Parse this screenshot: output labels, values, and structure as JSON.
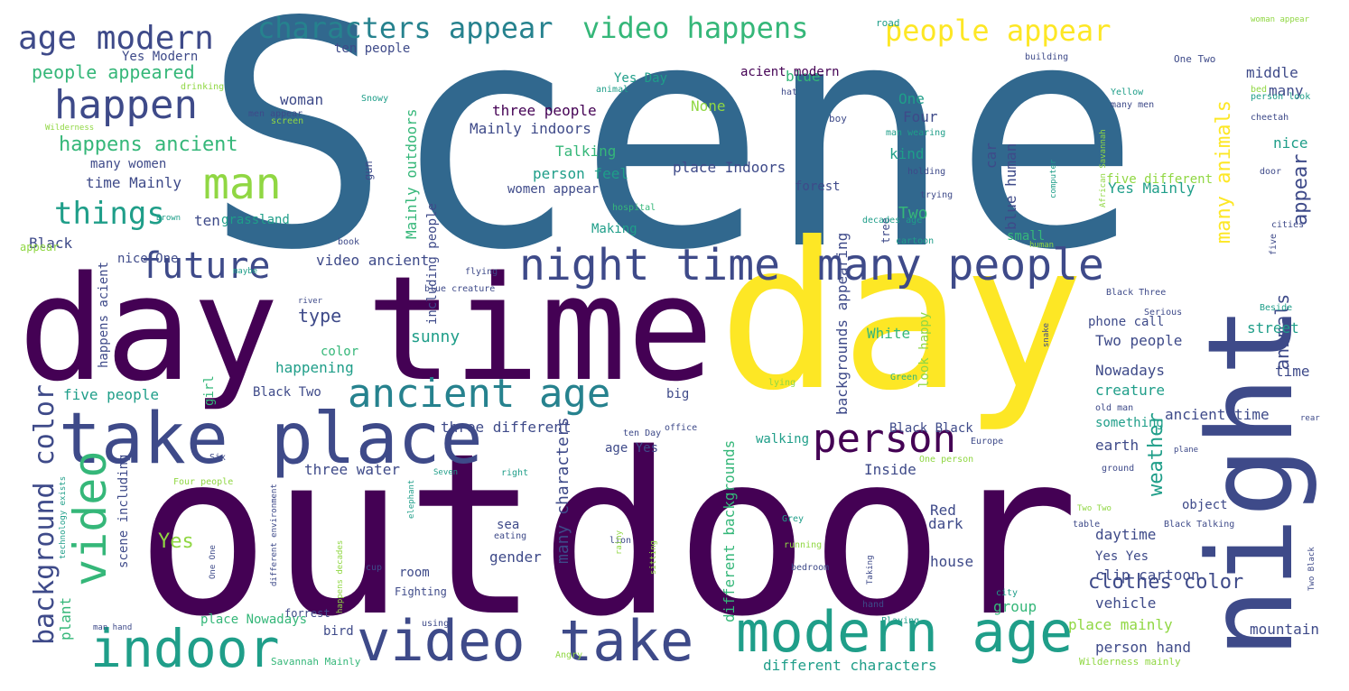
{
  "colors": {
    "purple": "#440154",
    "indigo": "#3e4a89",
    "blue": "#31688e",
    "teal": "#26828e",
    "green": "#1f9e89",
    "lime": "#35b779",
    "yellowgreen": "#90d743",
    "yellow": "#fde725"
  },
  "words": [
    {
      "text": "Scene",
      "color": "blue"
    },
    {
      "text": "outdoor",
      "color": "purple"
    },
    {
      "text": "day",
      "color": "yellow"
    },
    {
      "text": "day time",
      "color": "purple"
    },
    {
      "text": "night",
      "color": "indigo"
    },
    {
      "text": "take place",
      "color": "indigo"
    },
    {
      "text": "video take",
      "color": "indigo"
    },
    {
      "text": "modern age",
      "color": "green"
    },
    {
      "text": "indoor",
      "color": "green"
    },
    {
      "text": "night time",
      "color": "indigo"
    },
    {
      "text": "many people",
      "color": "indigo"
    },
    {
      "text": "ancient age",
      "color": "teal"
    },
    {
      "text": "person",
      "color": "purple"
    },
    {
      "text": "future",
      "color": "indigo"
    },
    {
      "text": "happen",
      "color": "indigo"
    },
    {
      "text": "age modern",
      "color": "indigo"
    },
    {
      "text": "man",
      "color": "yellowgreen"
    },
    {
      "text": "characters appear",
      "color": "teal"
    },
    {
      "text": "video happens",
      "color": "lime"
    },
    {
      "text": "people appear",
      "color": "yellow"
    },
    {
      "text": "things",
      "color": "green"
    },
    {
      "text": "video",
      "color": "lime"
    },
    {
      "text": "background color",
      "color": "indigo"
    },
    {
      "text": "many animals",
      "color": "yellow"
    },
    {
      "text": "appear",
      "color": "indigo"
    },
    {
      "text": "weather",
      "color": "green"
    },
    {
      "text": "animals",
      "color": "indigo"
    },
    {
      "text": "clothes color",
      "color": "indigo"
    },
    {
      "text": "happens ancient",
      "color": "lime"
    },
    {
      "text": "people appeared",
      "color": "lime"
    },
    {
      "text": "type",
      "color": "indigo"
    },
    {
      "text": "Mainly outdoors",
      "color": "lime"
    },
    {
      "text": "three people",
      "color": "purple"
    },
    {
      "text": "Mainly indoors",
      "color": "indigo"
    },
    {
      "text": "woman",
      "color": "indigo"
    },
    {
      "text": "person feel",
      "color": "green"
    },
    {
      "text": "place Indoors",
      "color": "indigo"
    },
    {
      "text": "Talking",
      "color": "lime"
    },
    {
      "text": "sunny",
      "color": "green"
    },
    {
      "text": "Two",
      "color": "lime"
    },
    {
      "text": "blue",
      "color": "lime"
    },
    {
      "text": "None",
      "color": "yellowgreen"
    },
    {
      "text": "One",
      "color": "green"
    },
    {
      "text": "Four",
      "color": "indigo"
    },
    {
      "text": "kind",
      "color": "green"
    },
    {
      "text": "car",
      "color": "indigo"
    },
    {
      "text": "many characters",
      "color": "indigo"
    },
    {
      "text": "different backgrounds",
      "color": "lime"
    },
    {
      "text": "backgrounds appearing",
      "color": "indigo"
    },
    {
      "text": "blue human",
      "color": "indigo"
    },
    {
      "text": "Yes Day",
      "color": "green"
    },
    {
      "text": "acient modern",
      "color": "purple"
    },
    {
      "text": "ten people",
      "color": "indigo"
    },
    {
      "text": "Yes Modern",
      "color": "indigo"
    },
    {
      "text": "time Mainly",
      "color": "indigo"
    },
    {
      "text": "many women",
      "color": "indigo"
    },
    {
      "text": "ten",
      "color": "indigo"
    },
    {
      "text": "Black",
      "color": "indigo"
    },
    {
      "text": "nice One",
      "color": "indigo"
    },
    {
      "text": "grassland",
      "color": "green"
    },
    {
      "text": "video ancient",
      "color": "indigo"
    },
    {
      "text": "Making",
      "color": "green"
    },
    {
      "text": "women appear",
      "color": "indigo"
    },
    {
      "text": "forest",
      "color": "indigo"
    },
    {
      "text": "including people",
      "color": "indigo"
    },
    {
      "text": "color",
      "color": "lime"
    },
    {
      "text": "happening",
      "color": "green"
    },
    {
      "text": "Black Two",
      "color": "indigo"
    },
    {
      "text": "five people",
      "color": "green"
    },
    {
      "text": "three different",
      "color": "indigo"
    },
    {
      "text": "walking",
      "color": "green"
    },
    {
      "text": "age Yes",
      "color": "indigo"
    },
    {
      "text": "three water",
      "color": "indigo"
    },
    {
      "text": "Inside",
      "color": "indigo"
    },
    {
      "text": "White",
      "color": "lime"
    },
    {
      "text": "look happy",
      "color": "yellowgreen"
    },
    {
      "text": "phone call",
      "color": "indigo"
    },
    {
      "text": "Two people",
      "color": "indigo"
    },
    {
      "text": "Nowadays",
      "color": "indigo"
    },
    {
      "text": "creature",
      "color": "green"
    },
    {
      "text": "something",
      "color": "green"
    },
    {
      "text": "ancient time",
      "color": "indigo"
    },
    {
      "text": "earth",
      "color": "indigo"
    },
    {
      "text": "Black Black",
      "color": "indigo"
    },
    {
      "text": "street",
      "color": "green"
    },
    {
      "text": "time",
      "color": "indigo"
    },
    {
      "text": "small",
      "color": "lime"
    },
    {
      "text": "middle",
      "color": "indigo"
    },
    {
      "text": "many",
      "color": "indigo"
    },
    {
      "text": "nice",
      "color": "green"
    },
    {
      "text": "five different",
      "color": "yellowgreen"
    },
    {
      "text": "Yes Mainly",
      "color": "green"
    },
    {
      "text": "Yes",
      "color": "yellowgreen"
    },
    {
      "text": "sea",
      "color": "indigo"
    },
    {
      "text": "gender",
      "color": "indigo"
    },
    {
      "text": "room",
      "color": "indigo"
    },
    {
      "text": "Red",
      "color": "indigo"
    },
    {
      "text": "dark",
      "color": "indigo"
    },
    {
      "text": "house",
      "color": "indigo"
    },
    {
      "text": "daytime",
      "color": "indigo"
    },
    {
      "text": "Yes Yes",
      "color": "indigo"
    },
    {
      "text": "clip cartoon",
      "color": "indigo"
    },
    {
      "text": "object",
      "color": "indigo"
    },
    {
      "text": "group",
      "color": "lime"
    },
    {
      "text": "vehicle",
      "color": "indigo"
    },
    {
      "text": "place mainly",
      "color": "yellowgreen"
    },
    {
      "text": "person hand",
      "color": "indigo"
    },
    {
      "text": "mountain",
      "color": "indigo"
    },
    {
      "text": "different characters",
      "color": "green"
    },
    {
      "text": "place Nowadays",
      "color": "lime"
    },
    {
      "text": "scene including",
      "color": "indigo"
    },
    {
      "text": "plant",
      "color": "lime"
    },
    {
      "text": "bird",
      "color": "indigo"
    },
    {
      "text": "big",
      "color": "indigo"
    },
    {
      "text": "girl",
      "color": "lime"
    },
    {
      "text": "happens acient",
      "color": "indigo"
    },
    {
      "text": "appear",
      "color": "yellowgreen"
    },
    {
      "text": "gun",
      "color": "indigo"
    },
    {
      "text": "tree",
      "color": "indigo"
    },
    {
      "text": "Fighting",
      "color": "indigo"
    },
    {
      "text": "forrest",
      "color": "indigo"
    },
    {
      "text": "Savannah Mainly",
      "color": "lime"
    },
    {
      "text": "Wilderness mainly",
      "color": "yellowgreen"
    },
    {
      "text": "road",
      "color": "green"
    },
    {
      "text": "One Two",
      "color": "indigo"
    },
    {
      "text": "woman appear",
      "color": "yellowgreen"
    },
    {
      "text": "building",
      "color": "indigo"
    },
    {
      "text": "bed",
      "color": "yellowgreen"
    },
    {
      "text": "hat",
      "color": "indigo"
    },
    {
      "text": "animal",
      "color": "green"
    },
    {
      "text": "Snowy",
      "color": "green"
    },
    {
      "text": "drinking",
      "color": "yellowgreen"
    },
    {
      "text": "Wilderness",
      "color": "yellowgreen"
    },
    {
      "text": "men appear",
      "color": "indigo"
    },
    {
      "text": "screen",
      "color": "yellowgreen"
    },
    {
      "text": "boy",
      "color": "indigo"
    },
    {
      "text": "Yellow",
      "color": "green"
    },
    {
      "text": "many men",
      "color": "indigo"
    },
    {
      "text": "person look",
      "color": "green"
    },
    {
      "text": "cheetah",
      "color": "indigo"
    },
    {
      "text": "man wearing",
      "color": "green"
    },
    {
      "text": "door",
      "color": "indigo"
    },
    {
      "text": "holding",
      "color": "indigo"
    },
    {
      "text": "African Savannah",
      "color": "yellowgreen"
    },
    {
      "text": "trying",
      "color": "indigo"
    },
    {
      "text": "decades age",
      "color": "green"
    },
    {
      "text": "cities",
      "color": "indigo"
    },
    {
      "text": "computer",
      "color": "green"
    },
    {
      "text": "hospital",
      "color": "lime"
    },
    {
      "text": "Brown",
      "color": "green"
    },
    {
      "text": "book",
      "color": "indigo"
    },
    {
      "text": "cartoon",
      "color": "green"
    },
    {
      "text": "human",
      "color": "yellowgreen"
    },
    {
      "text": "five",
      "color": "indigo"
    },
    {
      "text": "maybe",
      "color": "green"
    },
    {
      "text": "flying",
      "color": "indigo"
    },
    {
      "text": "blue creature",
      "color": "indigo"
    },
    {
      "text": "river",
      "color": "indigo"
    },
    {
      "text": "Black Three",
      "color": "indigo"
    },
    {
      "text": "Beside",
      "color": "green"
    },
    {
      "text": "Serious",
      "color": "indigo"
    },
    {
      "text": "snake",
      "color": "indigo"
    },
    {
      "text": "lying",
      "color": "yellowgreen"
    },
    {
      "text": "Green",
      "color": "lime"
    },
    {
      "text": "office",
      "color": "indigo"
    },
    {
      "text": "old man",
      "color": "indigo"
    },
    {
      "text": "ten Day",
      "color": "indigo"
    },
    {
      "text": "Europe",
      "color": "indigo"
    },
    {
      "text": "One person",
      "color": "yellowgreen"
    },
    {
      "text": "plane",
      "color": "indigo"
    },
    {
      "text": "ground",
      "color": "indigo"
    },
    {
      "text": "rear",
      "color": "indigo"
    },
    {
      "text": "right",
      "color": "green"
    },
    {
      "text": "Four people",
      "color": "yellowgreen"
    },
    {
      "text": "Six",
      "color": "indigo"
    },
    {
      "text": "technology exists",
      "color": "green"
    },
    {
      "text": "different environment",
      "color": "indigo"
    },
    {
      "text": "happens decades",
      "color": "yellowgreen"
    },
    {
      "text": "elephant",
      "color": "green"
    },
    {
      "text": "Seven",
      "color": "green"
    },
    {
      "text": "eating",
      "color": "indigo"
    },
    {
      "text": "cup",
      "color": "indigo"
    },
    {
      "text": "One One",
      "color": "indigo"
    },
    {
      "text": "lion",
      "color": "indigo"
    },
    {
      "text": "sitting",
      "color": "yellowgreen"
    },
    {
      "text": "rainy",
      "color": "yellowgreen"
    },
    {
      "text": "Grey",
      "color": "green"
    },
    {
      "text": "running",
      "color": "yellowgreen"
    },
    {
      "text": "bedroom",
      "color": "indigo"
    },
    {
      "text": "hand",
      "color": "indigo"
    },
    {
      "text": "Taking",
      "color": "indigo"
    },
    {
      "text": "Playing",
      "color": "green"
    },
    {
      "text": "table",
      "color": "indigo"
    },
    {
      "text": "Two Two",
      "color": "yellowgreen"
    },
    {
      "text": "Black Talking",
      "color": "indigo"
    },
    {
      "text": "Two Black",
      "color": "indigo"
    },
    {
      "text": "city",
      "color": "green"
    },
    {
      "text": "man hand",
      "color": "indigo"
    },
    {
      "text": "using",
      "color": "indigo"
    },
    {
      "text": "Angry",
      "color": "yellowgreen"
    }
  ]
}
